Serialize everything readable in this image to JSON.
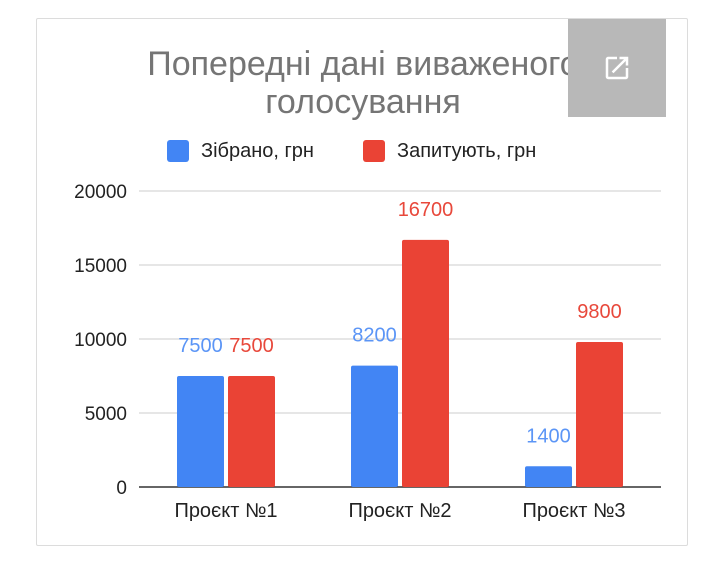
{
  "chart_data": {
    "type": "bar",
    "title_lines": [
      "Попередні дані виваженого",
      "голосування"
    ],
    "categories": [
      "Проєкт №1",
      "Проєкт №2",
      "Проєкт №3"
    ],
    "series": [
      {
        "name": "Зібрано, грн",
        "values": [
          7500,
          8200,
          1400
        ],
        "color": "#4285f4",
        "label_color": "#5b95f6"
      },
      {
        "name": "Запитують, грн",
        "values": [
          7500,
          16700,
          9800
        ],
        "color": "#ea4335",
        "label_color": "#e8483b"
      }
    ],
    "y_ticks": [
      "0",
      "5000",
      "10000",
      "15000",
      "20000"
    ],
    "ylim": [
      0,
      20000
    ],
    "grid": true,
    "legend_position": "top"
  },
  "colors": {
    "title": "#757575",
    "gridline": "#cccccc",
    "axis_text": "#222222",
    "open_button_bg": "#b8b8b8"
  },
  "icons": {
    "open_in_new": "open-in-new-icon"
  }
}
